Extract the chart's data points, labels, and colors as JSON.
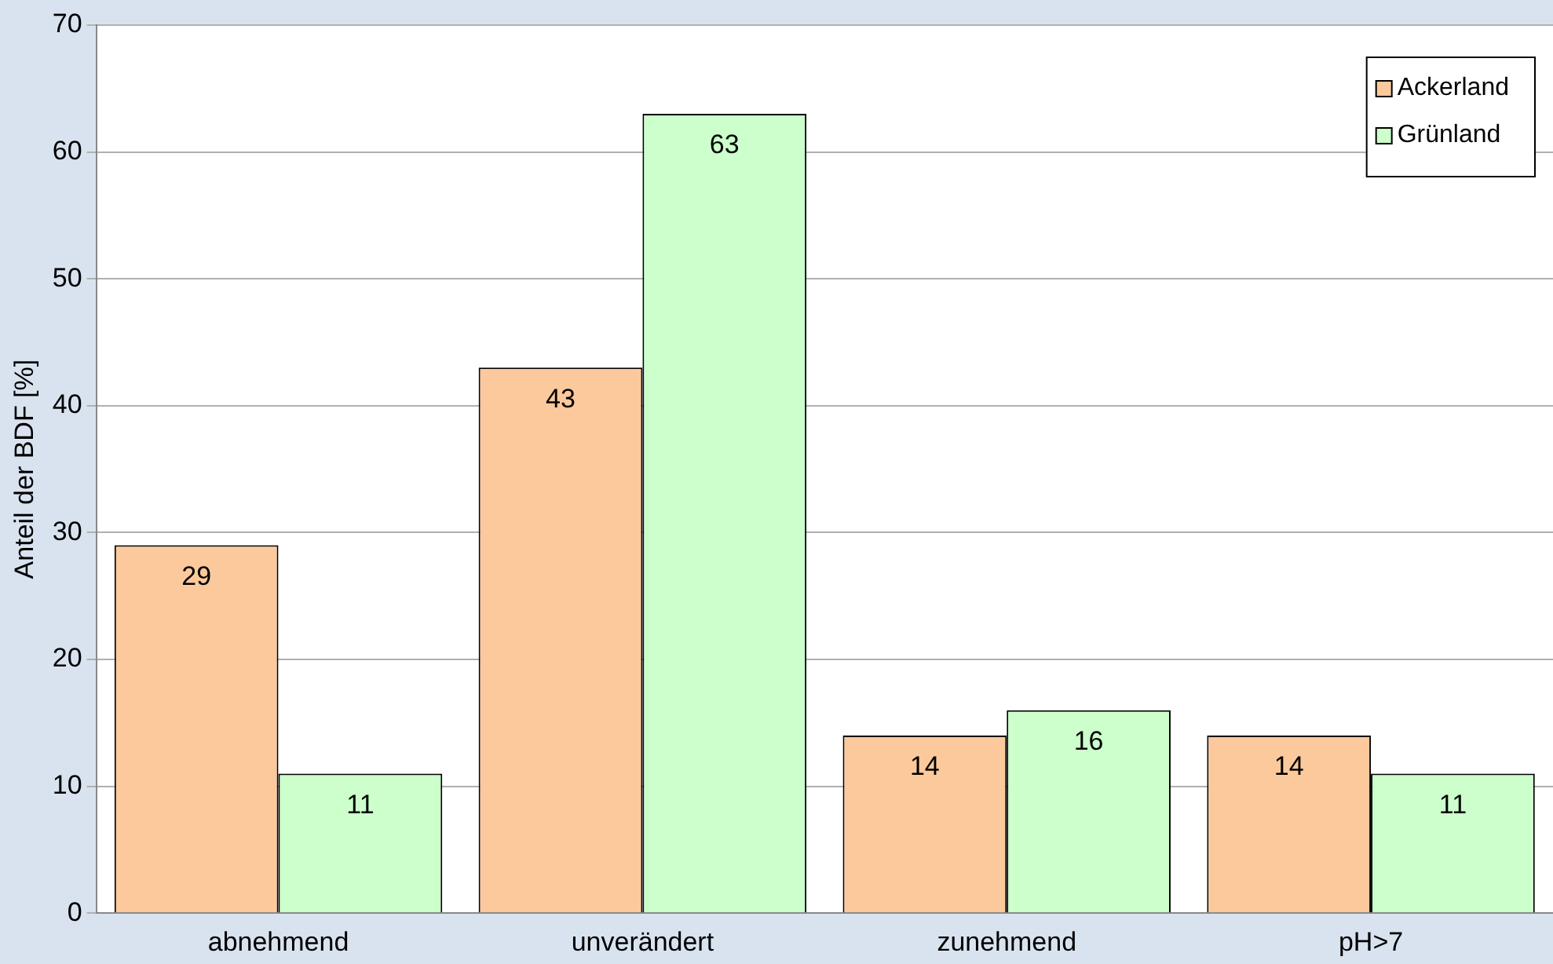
{
  "chart_data": {
    "type": "bar",
    "ylabel": "Anteil der BDF [%]",
    "categories": [
      "abnehmend",
      "unverändert",
      "zunehmend",
      "pH>7"
    ],
    "series": [
      {
        "name": "Ackerland",
        "color": "#fcc99c",
        "values": [
          29,
          43,
          14,
          14
        ]
      },
      {
        "name": "Grünland",
        "color": "#ccffcc",
        "values": [
          11,
          63,
          16,
          11
        ]
      }
    ],
    "ylim": [
      0,
      70
    ],
    "yticks": [
      0,
      10,
      20,
      30,
      40,
      50,
      60,
      70
    ],
    "grid": "y",
    "legend": "top right",
    "data_labels": true
  }
}
